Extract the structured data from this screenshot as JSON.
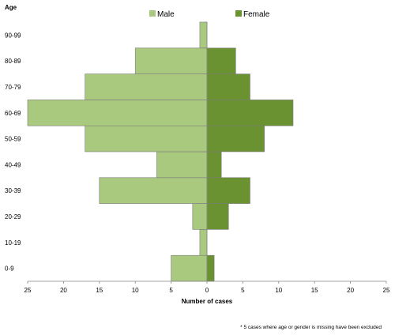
{
  "chart_data": {
    "type": "bar",
    "orientation": "horizontal-pyramid",
    "title": "",
    "ylabel": "Age",
    "xlabel": "Number of cases",
    "categories": [
      "0-9",
      "10-19",
      "20-29",
      "30-39",
      "40-49",
      "50-59",
      "60-69",
      "70-79",
      "80-89",
      "90-99"
    ],
    "series": [
      {
        "name": "Male",
        "values": [
          5,
          1,
          2,
          15,
          7,
          17,
          25,
          17,
          10,
          1
        ],
        "color": "#a9c97f",
        "side": "left"
      },
      {
        "name": "Female",
        "values": [
          1,
          0,
          3,
          6,
          2,
          8,
          12,
          6,
          4,
          0
        ],
        "color": "#6b9231",
        "side": "right"
      }
    ],
    "xlim": [
      -25,
      25
    ],
    "xticks": [
      -25,
      -20,
      -15,
      -10,
      -5,
      0,
      5,
      10,
      15,
      20,
      25
    ],
    "xtick_labels": [
      "25",
      "20",
      "15",
      "10",
      "5",
      "0",
      "5",
      "10",
      "15",
      "20",
      "25"
    ],
    "grid": false,
    "legend": "top-center",
    "footnote": "* 5 cases where age or gender is missing have been excluded"
  }
}
